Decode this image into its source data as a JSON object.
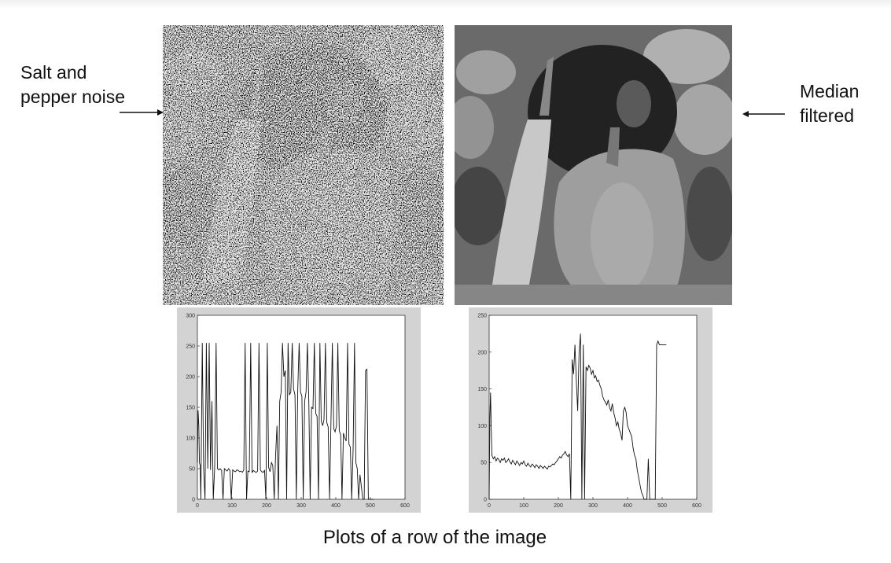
{
  "labels": {
    "left_annotation": "Salt and\npepper noise",
    "right_annotation": "Median\nfiltered",
    "caption": "Plots of a row of the image"
  },
  "photos": [
    {
      "name": "noisy-peppers-photo",
      "description_visible": false
    },
    {
      "name": "median-filtered-peppers-photo",
      "description_visible": false
    }
  ],
  "colors": {
    "plot_frame": "#d3d3d3",
    "plot_bg": "#ffffff",
    "line": "#111111",
    "arrow": "#111111"
  },
  "chart_data": [
    {
      "type": "line",
      "title": "",
      "xlabel": "",
      "ylabel": "",
      "xlim": [
        0,
        600
      ],
      "ylim": [
        0,
        300
      ],
      "xticks": [
        0,
        100,
        200,
        300,
        400,
        500,
        600
      ],
      "yticks": [
        0,
        50,
        100,
        150,
        200,
        250,
        300
      ],
      "grid": false,
      "series": [
        {
          "x": [
            0,
            2,
            4,
            6,
            8,
            10,
            14,
            18,
            22,
            26,
            30,
            34,
            38,
            42,
            46,
            50,
            54,
            58,
            62,
            66,
            70,
            74,
            78,
            82,
            86,
            90,
            94,
            98,
            102,
            106,
            110,
            114,
            118,
            122,
            126,
            130,
            134,
            138,
            142,
            146,
            150,
            154,
            158,
            162,
            166,
            170,
            174,
            178,
            182,
            186,
            190,
            194,
            198,
            202,
            206,
            210,
            214,
            218,
            222,
            226,
            230,
            234,
            238,
            242,
            246,
            250,
            254,
            258,
            262,
            266,
            270,
            274,
            278,
            282,
            286,
            290,
            294,
            298,
            302,
            306,
            310,
            314,
            318,
            322,
            326,
            330,
            334,
            338,
            342,
            346,
            350,
            354,
            358,
            362,
            366,
            370,
            374,
            378,
            382,
            386,
            390,
            394,
            398,
            402,
            406,
            410,
            414,
            418,
            422,
            426,
            430,
            434,
            438,
            442,
            446,
            450,
            454,
            458,
            462,
            466,
            470,
            474,
            478,
            482,
            486,
            490,
            494,
            498,
            502,
            506,
            510
          ],
          "y": [
            60,
            145,
            120,
            60,
            55,
            0,
            255,
            52,
            0,
            255,
            50,
            255,
            48,
            160,
            0,
            52,
            255,
            50,
            48,
            50,
            47,
            0,
            50,
            48,
            46,
            50,
            47,
            0,
            48,
            46,
            45,
            48,
            47,
            45,
            46,
            44,
            48,
            255,
            0,
            46,
            45,
            255,
            44,
            47,
            45,
            44,
            46,
            255,
            48,
            45,
            44,
            47,
            0,
            255,
            52,
            45,
            60,
            55,
            0,
            70,
            120,
            0,
            160,
            175,
            255,
            200,
            210,
            0,
            255,
            170,
            175,
            255,
            180,
            170,
            0,
            178,
            255,
            175,
            168,
            0,
            160,
            175,
            255,
            158,
            0,
            150,
            148,
            255,
            140,
            135,
            0,
            255,
            128,
            120,
            130,
            255,
            125,
            118,
            0,
            122,
            255,
            115,
            110,
            120,
            255,
            112,
            105,
            0,
            108,
            100,
            95,
            255,
            90,
            85,
            0,
            80,
            255,
            60,
            50,
            0,
            40,
            20,
            0,
            0,
            210,
            212,
            0,
            0,
            0,
            0,
            0
          ]
        }
      ]
    },
    {
      "type": "line",
      "title": "",
      "xlabel": "",
      "ylabel": "",
      "xlim": [
        0,
        600
      ],
      "ylim": [
        0,
        250
      ],
      "xticks": [
        0,
        100,
        200,
        300,
        400,
        500,
        600
      ],
      "yticks": [
        0,
        50,
        100,
        150,
        200,
        250
      ],
      "grid": false,
      "series": [
        {
          "x": [
            0,
            2,
            4,
            6,
            8,
            12,
            16,
            20,
            24,
            28,
            32,
            36,
            40,
            44,
            48,
            52,
            56,
            60,
            64,
            68,
            72,
            76,
            80,
            84,
            88,
            92,
            96,
            100,
            104,
            108,
            112,
            116,
            120,
            124,
            128,
            132,
            136,
            140,
            144,
            148,
            152,
            156,
            160,
            164,
            168,
            172,
            176,
            180,
            184,
            188,
            192,
            196,
            200,
            204,
            208,
            212,
            216,
            220,
            224,
            228,
            232,
            236,
            240,
            244,
            248,
            252,
            256,
            260,
            264,
            268,
            272,
            276,
            280,
            284,
            288,
            292,
            296,
            300,
            304,
            308,
            312,
            316,
            320,
            324,
            328,
            332,
            336,
            340,
            344,
            348,
            352,
            356,
            360,
            364,
            368,
            372,
            376,
            380,
            384,
            388,
            392,
            396,
            400,
            404,
            408,
            412,
            416,
            420,
            424,
            428,
            432,
            436,
            440,
            444,
            448,
            452,
            456,
            460,
            464,
            468,
            472,
            476,
            480,
            484,
            488,
            492,
            496,
            500,
            504,
            508,
            512
          ],
          "y": [
            0,
            110,
            145,
            100,
            60,
            55,
            58,
            52,
            56,
            54,
            50,
            55,
            53,
            56,
            50,
            52,
            55,
            51,
            48,
            53,
            50,
            47,
            52,
            49,
            46,
            50,
            48,
            52,
            47,
            45,
            49,
            46,
            44,
            48,
            46,
            43,
            47,
            45,
            42,
            46,
            44,
            42,
            45,
            43,
            41,
            45,
            44,
            46,
            48,
            47,
            50,
            52,
            55,
            58,
            56,
            60,
            62,
            65,
            60,
            58,
            62,
            0,
            190,
            170,
            210,
            160,
            120,
            200,
            225,
            0,
            210,
            0,
            180,
            175,
            182,
            178,
            170,
            175,
            165,
            168,
            160,
            162,
            155,
            150,
            140,
            135,
            132,
            128,
            135,
            125,
            120,
            130,
            118,
            110,
            100,
            105,
            95,
            90,
            80,
            120,
            125,
            118,
            100,
            95,
            90,
            85,
            70,
            60,
            55,
            40,
            30,
            20,
            10,
            5,
            0,
            0,
            0,
            55,
            0,
            0,
            0,
            0,
            0,
            210,
            215,
            210,
            210,
            210,
            210,
            210,
            210
          ]
        }
      ]
    }
  ]
}
